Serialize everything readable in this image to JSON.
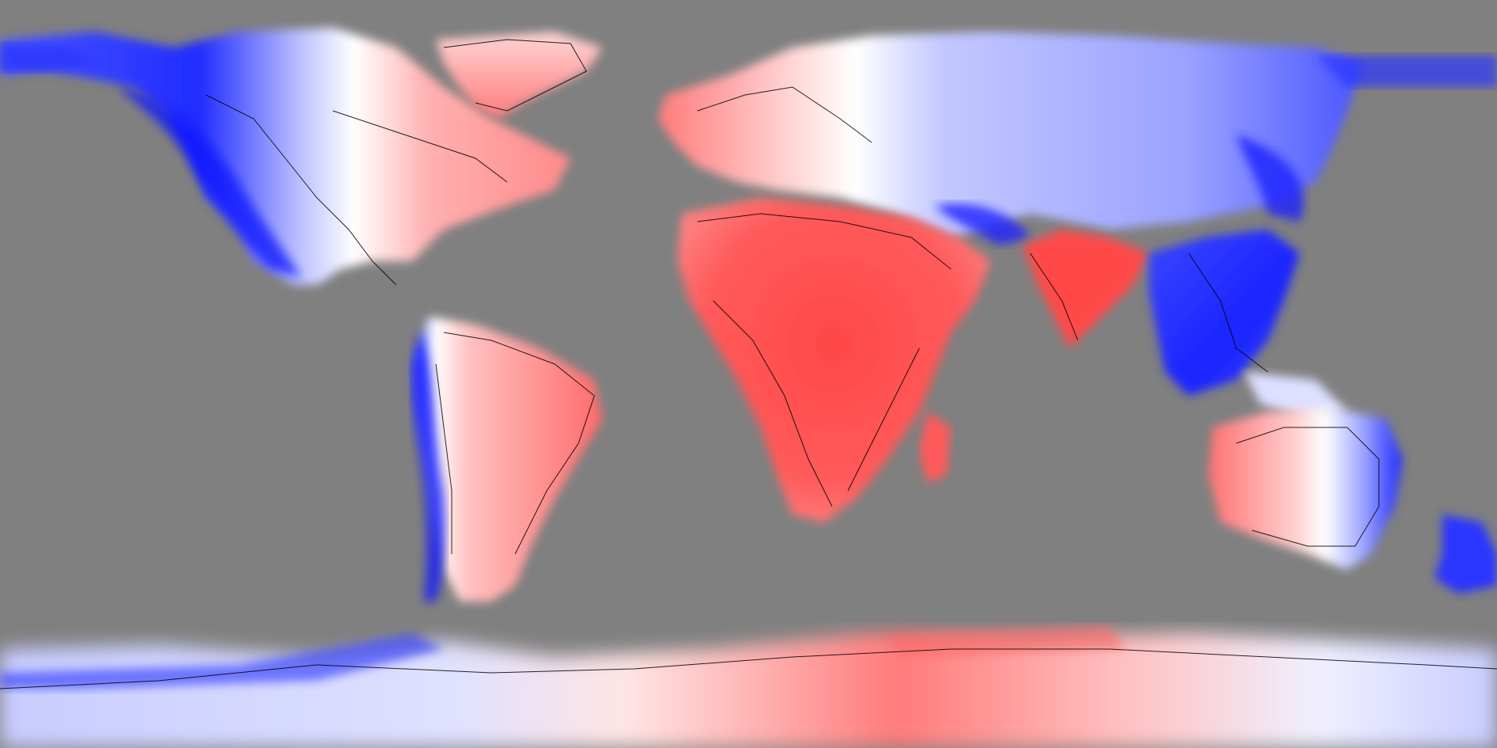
{
  "map": {
    "projection": "equirectangular",
    "ocean_color": "#808080",
    "coastline_color": "#000000",
    "colormap": {
      "positive": "#ff3b3b",
      "neutral": "#ffffff",
      "negative": "#0000ff"
    },
    "regions": [
      {
        "name": "north-america-west",
        "sign": "negative"
      },
      {
        "name": "north-america-east",
        "sign": "positive"
      },
      {
        "name": "greenland",
        "sign": "positive"
      },
      {
        "name": "europe-west",
        "sign": "positive"
      },
      {
        "name": "eurasia-north",
        "sign": "negative"
      },
      {
        "name": "africa",
        "sign": "positive"
      },
      {
        "name": "arabia",
        "sign": "positive"
      },
      {
        "name": "india",
        "sign": "positive"
      },
      {
        "name": "southeast-asia",
        "sign": "negative"
      },
      {
        "name": "south-america-west",
        "sign": "negative"
      },
      {
        "name": "south-america-east",
        "sign": "positive"
      },
      {
        "name": "australia-west",
        "sign": "positive"
      },
      {
        "name": "australia-east",
        "sign": "negative"
      },
      {
        "name": "new-zealand",
        "sign": "negative"
      },
      {
        "name": "madagascar",
        "sign": "positive"
      },
      {
        "name": "antarctica-west",
        "sign": "negative"
      },
      {
        "name": "antarctica-east",
        "sign": "positive"
      }
    ]
  }
}
